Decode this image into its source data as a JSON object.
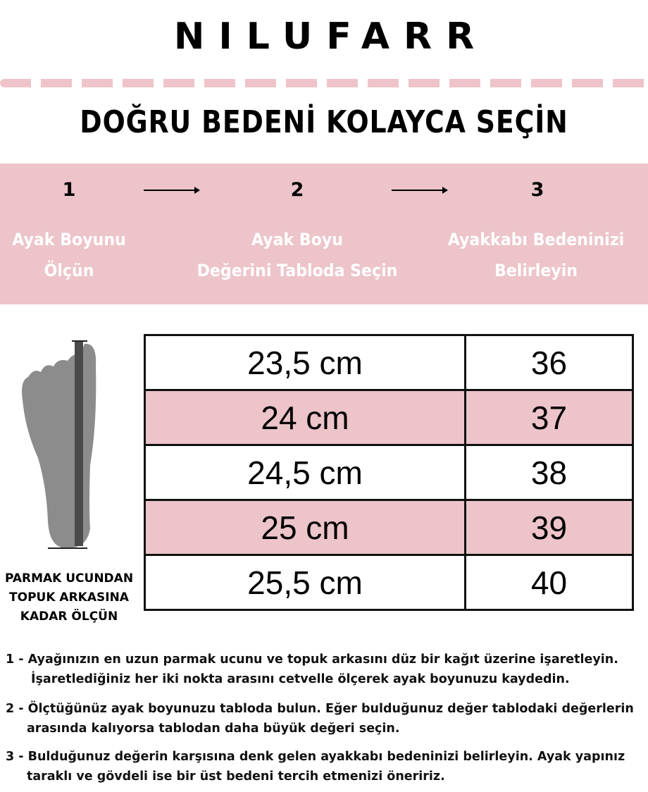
{
  "brand": "NILUFARR",
  "heading": "DOĞRU BEDENİ KOLAYCA SEÇİN",
  "colors": {
    "accent_pink": "#ecc4c9",
    "text": "#000000"
  },
  "steps": [
    {
      "number": "1",
      "line1": "Ayak Boyunu",
      "line2": "Ölçün"
    },
    {
      "number": "2",
      "line1": "Ayak Boyu",
      "line2": "Değerini Tabloda Seçin"
    },
    {
      "number": "3",
      "line1": "Ayakkabı Bedeninizi",
      "line2": "Belirleyin"
    }
  ],
  "size_table": [
    {
      "length": "23,5 cm",
      "size": "36"
    },
    {
      "length": "24 cm",
      "size": "37"
    },
    {
      "length": "24,5 cm",
      "size": "38"
    },
    {
      "length": "25 cm",
      "size": "39"
    },
    {
      "length": "25,5 cm",
      "size": "40"
    }
  ],
  "foot_caption": {
    "line1": "PARMAK UCUNDAN",
    "line2": "TOPUK ARKASINA",
    "line3": "KADAR ÖLÇÜN"
  },
  "instructions": [
    {
      "line1": "1 - Ayağınızın en uzun parmak ucunu ve topuk arkasını düz bir kağıt üzerine işaretleyin.",
      "line2": "İşaretlediğiniz her iki nokta arasını cetvelle ölçerek ayak boyunuzu kaydedin."
    },
    {
      "line1": "2 - Ölçtüğünüz ayak boyunuzu tabloda bulun. Eğer bulduğunuz değer tablodaki değerlerin",
      "line2": "arasında kalıyorsa tablodan daha büyük değeri seçin."
    },
    {
      "line1": "3 - Bulduğunuz değerin karşısına denk gelen ayakkabı bedeninizi belirleyin. Ayak yapınız",
      "line2": "taraklı ve gövdeli ise bir üst bedeni tercih etmenizi öneririz."
    }
  ]
}
